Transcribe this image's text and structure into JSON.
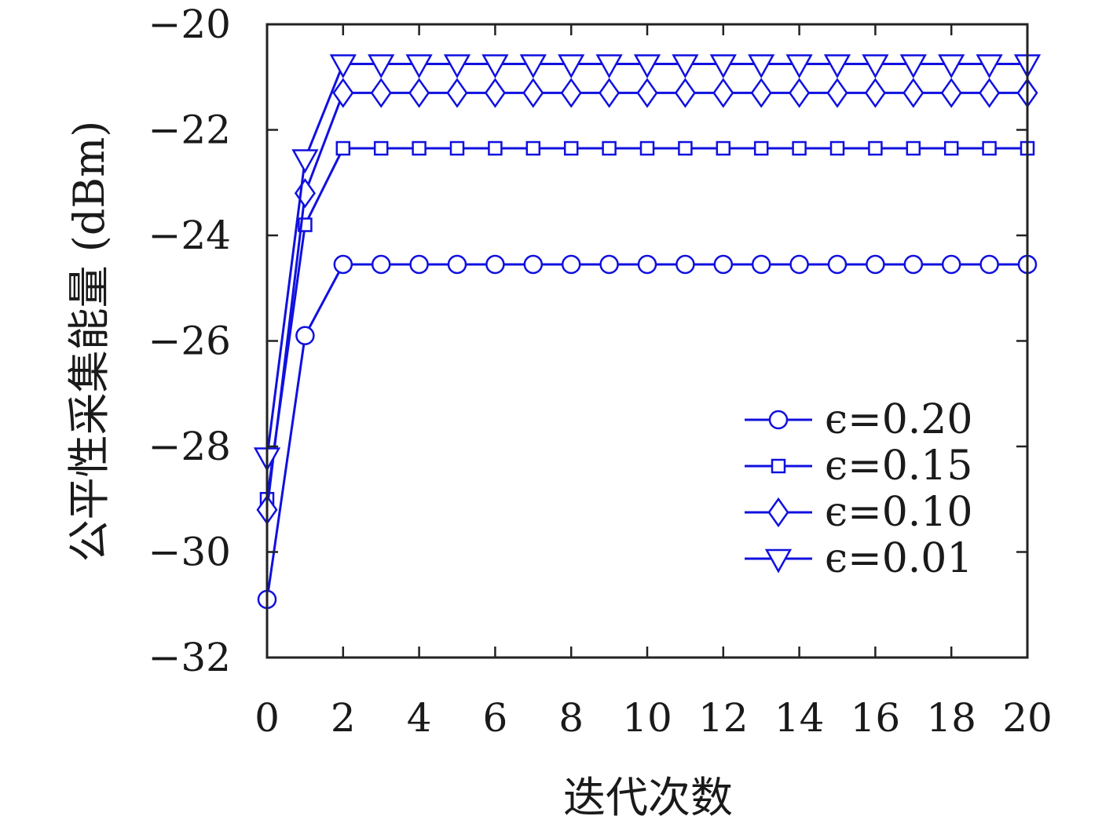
{
  "chart_data": {
    "type": "line",
    "title": "",
    "xlabel": "迭代次数",
    "ylabel": "公平性采集能量 (dBm)",
    "xlim": [
      0,
      20
    ],
    "ylim": [
      -32,
      -20
    ],
    "xticks": [
      "0",
      "2",
      "4",
      "6",
      "8",
      "10",
      "12",
      "14",
      "16",
      "18",
      "20"
    ],
    "yticks": [
      "−20",
      "−22",
      "−24",
      "−26",
      "−28",
      "−30",
      "−32"
    ],
    "grid": false,
    "legend_position": "lower-right",
    "line_color": "#1010e0",
    "x": [
      0,
      1,
      2,
      3,
      4,
      5,
      6,
      7,
      8,
      9,
      10,
      11,
      12,
      13,
      14,
      15,
      16,
      17,
      18,
      19,
      20
    ],
    "series": [
      {
        "name": "ϵ=0.20",
        "marker": "circle",
        "values": [
          -30.9,
          -25.9,
          -24.55,
          -24.55,
          -24.55,
          -24.55,
          -24.55,
          -24.55,
          -24.55,
          -24.55,
          -24.55,
          -24.55,
          -24.55,
          -24.55,
          -24.55,
          -24.55,
          -24.55,
          -24.55,
          -24.55,
          -24.55,
          -24.55
        ]
      },
      {
        "name": "ϵ=0.15",
        "marker": "square",
        "values": [
          -29.0,
          -23.8,
          -22.35,
          -22.35,
          -22.35,
          -22.35,
          -22.35,
          -22.35,
          -22.35,
          -22.35,
          -22.35,
          -22.35,
          -22.35,
          -22.35,
          -22.35,
          -22.35,
          -22.35,
          -22.35,
          -22.35,
          -22.35,
          -22.35
        ]
      },
      {
        "name": "ϵ=0.10",
        "marker": "diamond",
        "values": [
          -29.2,
          -23.2,
          -21.3,
          -21.3,
          -21.3,
          -21.3,
          -21.3,
          -21.3,
          -21.3,
          -21.3,
          -21.3,
          -21.3,
          -21.3,
          -21.3,
          -21.3,
          -21.3,
          -21.3,
          -21.3,
          -21.3,
          -21.3,
          -21.3
        ]
      },
      {
        "name": "ϵ=0.01",
        "marker": "triangle-down",
        "values": [
          -28.2,
          -22.55,
          -20.75,
          -20.75,
          -20.75,
          -20.75,
          -20.75,
          -20.75,
          -20.75,
          -20.75,
          -20.75,
          -20.75,
          -20.75,
          -20.75,
          -20.75,
          -20.75,
          -20.75,
          -20.75,
          -20.75,
          -20.75,
          -20.75
        ]
      }
    ]
  }
}
